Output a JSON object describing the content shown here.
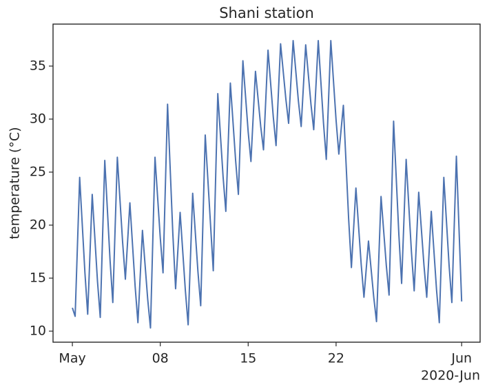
{
  "chart_data": {
    "type": "line",
    "title": "Shani station",
    "ylabel": "temperature (°C)",
    "x_offset_label": "2020-Jun",
    "color": "#4c72b0",
    "x": [
      0,
      0.22,
      0.58,
      1,
      1.22,
      1.58,
      2,
      2.22,
      2.58,
      3,
      3.22,
      3.58,
      4,
      4.22,
      4.58,
      5,
      5.22,
      5.58,
      6,
      6.22,
      6.58,
      7,
      7.22,
      7.58,
      8,
      8.22,
      8.58,
      9,
      9.22,
      9.58,
      10,
      10.22,
      10.58,
      11,
      11.22,
      11.58,
      12,
      12.22,
      12.58,
      13,
      13.22,
      13.58,
      14,
      14.22,
      14.58,
      15,
      15.22,
      15.58,
      16,
      16.22,
      16.58,
      17,
      17.22,
      17.58,
      18,
      18.22,
      18.58,
      19,
      19.22,
      19.58,
      20,
      20.22,
      20.58,
      21,
      21.22,
      21.58,
      22,
      22.22,
      22.58,
      23,
      23.22,
      23.58,
      24,
      24.22,
      24.58,
      25,
      25.22,
      25.58,
      26,
      26.22,
      26.58,
      27,
      27.22,
      27.58,
      28,
      28.22,
      28.58,
      29,
      29.22,
      29.58,
      30,
      30.22,
      30.58,
      31
    ],
    "values": [
      12.2,
      11.4,
      24.5,
      15.5,
      11.6,
      22.9,
      14.7,
      11.3,
      26.1,
      16.7,
      12.7,
      26.4,
      18.4,
      14.9,
      22.1,
      14.2,
      10.8,
      19.5,
      13.0,
      10.3,
      26.4,
      18.8,
      15.5,
      31.4,
      19.2,
      14.0,
      21.2,
      13.8,
      10.6,
      23.0,
      15.6,
      12.4,
      28.5,
      20.1,
      15.7,
      32.4,
      24.6,
      21.3,
      33.4,
      26.1,
      22.9,
      35.5,
      28.8,
      26.0,
      34.5,
      29.3,
      27.1,
      36.5,
      30.2,
      27.5,
      37.1,
      31.9,
      29.6,
      37.4,
      31.7,
      29.3,
      37.0,
      31.4,
      29.0,
      37.4,
      29.6,
      26.2,
      37.4,
      29.9,
      26.7,
      31.3,
      20.6,
      16.0,
      23.5,
      16.3,
      13.2,
      18.5,
      13.2,
      10.9,
      22.7,
      16.2,
      13.4,
      29.8,
      19.1,
      14.5,
      26.2,
      17.5,
      13.8,
      23.1,
      16.2,
      13.2,
      21.3,
      13.9,
      10.8,
      24.5,
      16.2,
      12.7,
      26.5,
      12.8
    ],
    "xlim": [
      -1.54,
      32.47
    ],
    "xticks": [
      {
        "value": 0,
        "label": "May"
      },
      {
        "value": 7,
        "label": "08"
      },
      {
        "value": 14,
        "label": "15"
      },
      {
        "value": 21,
        "label": "22"
      },
      {
        "value": 31,
        "label": "Jun"
      }
    ],
    "ylim": [
      8.96,
      38.96
    ],
    "yticks": [
      10,
      15,
      20,
      25,
      30,
      35
    ],
    "grid": false
  }
}
